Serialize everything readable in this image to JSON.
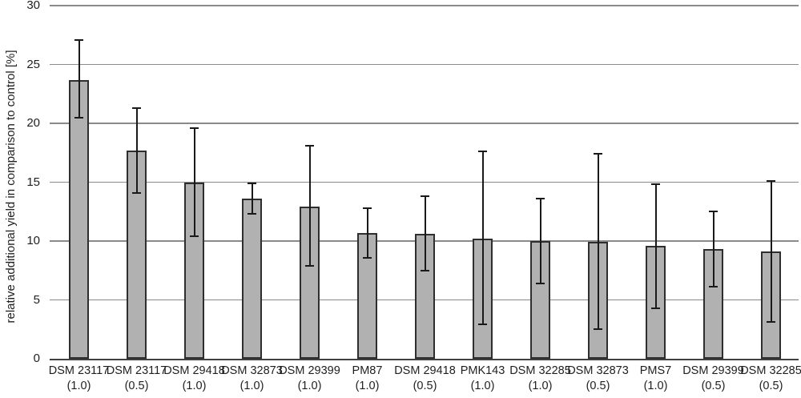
{
  "chart_data": {
    "type": "bar",
    "title": "",
    "xlabel": "",
    "ylabel": "relative additional yield in comparison to control [%]",
    "ylim": [
      0,
      30
    ],
    "yticks": [
      0,
      5,
      10,
      15,
      20,
      25,
      30
    ],
    "grid": "horizontal-major",
    "legend": "none",
    "categories": [
      "DSM 23117",
      "DSM 23117",
      "DSM 29418",
      "DSM 32873",
      "DSM 29399",
      "PM87",
      "DSM 29418",
      "PMK143",
      "DSM 32285",
      "DSM 32873",
      "PMS7",
      "DSM 29399",
      "DSM 32285"
    ],
    "doses": [
      "(1.0)",
      "(0.5)",
      "(1.0)",
      "(1.0)",
      "(1.0)",
      "(1.0)",
      "(0.5)",
      "(1.0)",
      "(1.0)",
      "(0.5)",
      "(1.0)",
      "(0.5)",
      "(0.5)"
    ],
    "values": [
      23.7,
      17.7,
      15.0,
      13.6,
      12.9,
      10.7,
      10.6,
      10.2,
      10.0,
      9.9,
      9.6,
      9.3,
      9.1
    ],
    "error_high": [
      27.1,
      21.3,
      19.6,
      14.9,
      18.1,
      12.8,
      13.8,
      17.6,
      13.6,
      17.4,
      14.8,
      12.5,
      15.1
    ],
    "error_low": [
      20.5,
      14.1,
      10.4,
      12.3,
      7.9,
      8.6,
      7.5,
      2.9,
      6.4,
      2.5,
      4.3,
      6.1,
      3.1
    ],
    "colors": {
      "background": "#ffffff",
      "bar_fill": "#b1b1b1",
      "bar_border": "#2e2e2e",
      "gridline": "#8a8a8a",
      "axis_line": "#404040",
      "error_bar": "#1a1a1a",
      "text": "#1f1f1f"
    }
  }
}
